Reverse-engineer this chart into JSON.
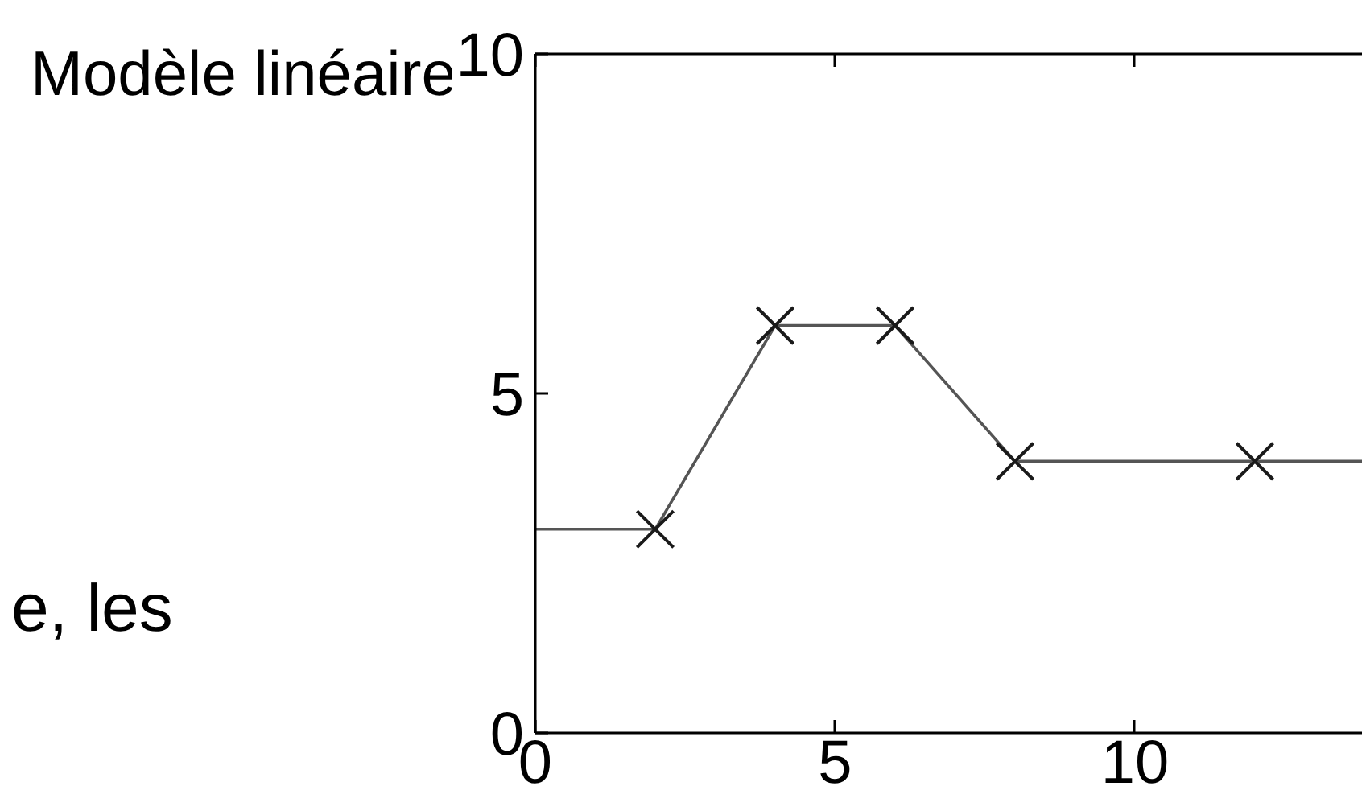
{
  "chart_data": {
    "type": "line",
    "title": "Modèle linéaire",
    "annotations": [
      "e, les"
    ],
    "xlim": [
      0,
      13.8
    ],
    "xticks": [
      0,
      5,
      10
    ],
    "ylim": [
      0,
      10
    ],
    "yticks": [
      0,
      5,
      10
    ],
    "grid": false,
    "series": [
      {
        "color": "#555555",
        "x": [
          0,
          2,
          4,
          6,
          8,
          12,
          13.8
        ],
        "values": [
          3,
          3,
          6,
          6,
          4,
          4,
          4
        ]
      },
      {
        "type": "scatter",
        "color": "#1a1a1a",
        "x": [
          2,
          4,
          6,
          8,
          12
        ],
        "values": [
          3,
          6,
          6,
          4,
          4
        ],
        "marker": "cross"
      }
    ]
  }
}
